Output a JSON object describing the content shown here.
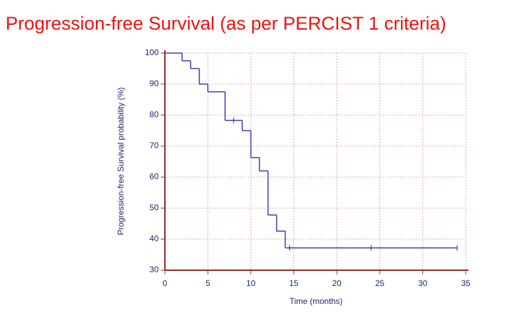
{
  "chart_data": {
    "type": "step",
    "title": "Progression-free Survival (as per PERCIST 1 criteria)",
    "x_label": "Time (months)",
    "y_label": "Progression-free Survival probability (%)",
    "x": [
      0,
      2,
      3,
      4,
      5,
      7,
      9,
      10,
      11,
      12,
      13,
      14,
      34
    ],
    "values": [
      100,
      97.5,
      95,
      90,
      87.5,
      78.3,
      75,
      66.3,
      62,
      47.8,
      42.6,
      37.2,
      37.2
    ],
    "color": "#3a3aa8",
    "censored": {
      "x": [
        8,
        14.5,
        24,
        34
      ],
      "values": [
        78.3,
        37.2,
        37.2,
        37.2
      ]
    },
    "xlim": [
      0,
      35
    ],
    "xticks": [
      0,
      5,
      10,
      15,
      20,
      25,
      30,
      35
    ],
    "ylim": [
      30,
      100
    ],
    "yticks": [
      30,
      40,
      50,
      60,
      70,
      80,
      90,
      100
    ],
    "grid": true
  }
}
